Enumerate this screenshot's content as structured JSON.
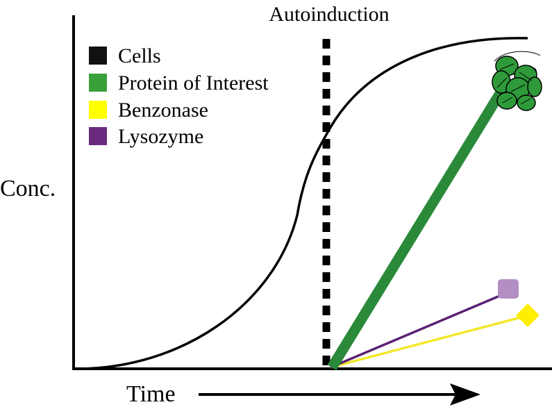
{
  "labels": {
    "event": "Autoinduction",
    "y_axis": "Conc.",
    "x_axis": "Time"
  },
  "legend": {
    "items": [
      {
        "label": "Cells",
        "color": "#111111",
        "key": "cells"
      },
      {
        "label": "Protein of Interest",
        "color": "#3aa13a",
        "key": "protein"
      },
      {
        "label": "Benzonase",
        "color": "#ffff00",
        "key": "benzonase"
      },
      {
        "label": "Lysozyme",
        "color": "#6a2a7e",
        "key": "lysozyme"
      }
    ]
  },
  "colors": {
    "axes": "#000000",
    "cells_curve": "#000000",
    "protein_line": "#2a8a3a",
    "protein_icon": "#2f9a3a",
    "benzonase_line": "#f2e82a",
    "benzonase_marker": "#ffee00",
    "lysozyme_line": "#5c2173",
    "lysozyme_marker": "#b38ec4",
    "induction_line": "#000000"
  },
  "icons": {
    "protein_end": "protein-structure-icon",
    "lysozyme_end": "square-marker-icon",
    "benzonase_end": "diamond-marker-icon"
  }
}
